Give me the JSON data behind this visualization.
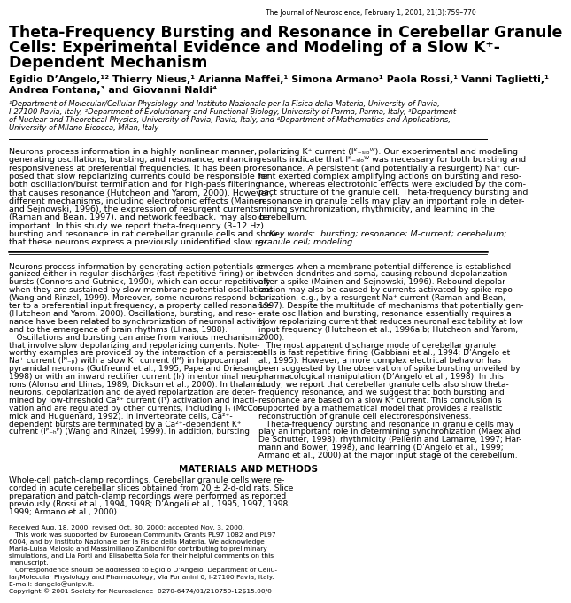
{
  "journal_header": "The Journal of Neuroscience, February 1, 2001, 21(3):759–770",
  "title_line1": "Theta-Frequency Bursting and Resonance in Cerebellar Granule",
  "title_line2": "Cells: Experimental Evidence and Modeling of a Slow K⁺-",
  "title_line3": "Dependent Mechanism",
  "authors_line1": "Egidio D’Angelo,¹² Thierry Nieus,¹ Arianna Maffei,¹ Simona Armano¹ Paola Rossi,¹ Vanni Taglietti,¹",
  "authors_line2": "Andrea Fontana,³ and Giovanni Naldi⁴",
  "aff_line1": "¹Department of Molecular/Cellular Physiology and Instituto Nazionale per la Fisica della Materia, University of Pavia,",
  "aff_line2": "I-27100 Pavia, Italy, ²Department of Evolutionary and Functional Biology, University of Parma, Parma, Italy, ³Department",
  "aff_line3": "of Nuclear and Theoretical Physics, University of Pavia, Pavia, Italy, and ⁴Department of Mathematics and Applications,",
  "aff_line4": "University of Milano Bicocca, Milan, Italy",
  "abstract_left_lines": [
    "Neurons process information in a highly nonlinear manner,",
    "generating oscillations, bursting, and resonance, enhancing",
    "responsiveness at preferential frequencies. It has been pro-",
    "posed that slow repolarizing currents could be responsible for",
    "both oscillation/burst termination and for high-pass filtering",
    "that causes resonance (Hutcheon and Yarom, 2000). However,",
    "different mechanisms, including electrotonic effects (Mainen",
    "and Sejnowski, 1996), the expression of resurgent currents",
    "(Raman and Bean, 1997), and network feedback, may also be",
    "important. In this study we report theta-frequency (3–12 Hz)",
    "bursting and resonance in rat cerebellar granule cells and show",
    "that these neurons express a previously unidentified slow re-"
  ],
  "abstract_right_lines": [
    "polarizing K⁺ current (Iᴷ₋ₛₗₒᵂ). Our experimental and modeling",
    "results indicate that Iᴷ₋ₛₗₒᵂ was necessary for both bursting and",
    "resonance. A persistent (and potentially a resurgent) Na⁺ cur-",
    "rent exerted complex amplifying actions on bursting and reso-",
    "nance, whereas electrotonic effects were excluded by the com-",
    "pact structure of the granule cell. Theta-frequency bursting and",
    "resonance in granule cells may play an important role in deter-",
    "mining synchronization, rhythmicity, and learning in the",
    "cerebellum.",
    "",
    "    Key words:  bursting; resonance; M-current; cerebellum;",
    "granule cell; modeling"
  ],
  "body_left_lines": [
    "Neurons process information by generating action potentials or-",
    "ganized either in regular discharges (fast repetitive firing) or in",
    "bursts (Connors and Gutnick, 1990), which can occur repetitively",
    "when they are sustained by slow membrane potential oscillations",
    "(Wang and Rinzel, 1999). Moreover, some neurons respond bet-",
    "ter to a preferential input frequency, a property called resonance",
    "(Hutcheon and Yarom, 2000). Oscillations, bursting, and reso-",
    "nance have been related to synchronization of neuronal activity",
    "and to the emergence of brain rhythms (Llinas, 1988).",
    "   Oscillations and bursting can arise from various mechanisms",
    "that involve slow depolarizing and repolarizing currents. Note-",
    "worthy examples are provided by the interaction of a persistent",
    "Na⁺ current (Iᴺ₋ₚ) with a slow K⁺ current (Iᴹ) in hippocampal",
    "pyramidal neurons (Gutfreund et al., 1995; Pape and Driesang,",
    "1998) or with an inward rectifier current (Iₕ) in entorhinal neu-",
    "rons (Alonso and Llinas, 1989; Dickson et al., 2000). In thalamic",
    "neurons, depolarization and delayed repolarization are deter-",
    "mined by low-threshold Ca²⁺ current (Iᵀ) activation and inacti-",
    "vation and are regulated by other currents, including Iₕ (McCor-",
    "mick and Huguenard, 1992). In invertebrate cells, Ca²⁺-",
    "dependent bursts are terminated by a Ca²⁺-dependent K⁺",
    "current (Iᴾ₋ₕᴾ) (Wang and Rinzel, 1999). In addition, bursting"
  ],
  "body_right_lines": [
    "emerges when a membrane potential difference is established",
    "between dendrites and soma, causing rebound depolarization",
    "after a spike (Mainen and Sejnowski, 1996). Rebound depolar-",
    "ization may also be caused by currents activated by spike repo-",
    "larization, e.g., by a resurgent Na⁺ current (Raman and Bean,",
    "1997). Despite the multitude of mechanisms that potentially gen-",
    "erate oscillation and bursting, resonance essentially requires a",
    "slow repolarizing current that reduces neuronal excitability at low",
    "input frequency (Hutcheon et al., 1996a,b; Hutcheon and Yarom,",
    "2000).",
    "   The most apparent discharge mode of cerebellar granule",
    "cells is fast repetitive firing (Gabbiani et al., 1994; D’Angelo et",
    "al., 1995). However, a more complex electrical behavior has",
    "been suggested by the observation of spike bursting unveiled by",
    "pharmacological manipulation (D’Angelo et al., 1998). In this",
    "study, we report that cerebellar granule cells also show theta-",
    "frequency resonance, and we suggest that both bursting and",
    "resonance are based on a slow K⁺ current. This conclusion is",
    "supported by a mathematical model that provides a realistic",
    "reconstruction of granule cell electroresponsiveness.",
    "   Theta-frequency bursting and resonance in granule cells may",
    "play an important role in determining synchronization (Maex and",
    "De Schutter, 1998), rhythmicity (Pellerin and Lamarre, 1997; Har-",
    "mann and Bower, 1998), and learning (D’Angelo et al., 1999;",
    "Armano et al., 2000) at the major input stage of the cerebellum."
  ],
  "materials_header": "MATERIALS AND METHODS",
  "materials_lines": [
    "Whole-cell patch-clamp recordings. Cerebellar granule cells were re-",
    "corded in acute cerebellar slices obtained from 20 ± 2-d-old rats. Slice",
    "preparation and patch-clamp recordings were performed as reported",
    "previously (Rossi et al., 1994, 1998; D’Angeli et al., 1995, 1997, 1998,",
    "1999; Armano et al., 2000)."
  ],
  "footnote_lines": [
    "Received Aug. 18, 2000; revised Oct. 30, 2000; accepted Nov. 3, 2000.",
    "   This work was supported by European Community Grants PL97 1082 and PL97",
    "6004, and by Instituto Nazionale per la Fisica della Materia. We acknowledge",
    "Maria-Luisa Malosio and Massimiliano Zaniboni for contributing to preliminary",
    "simulations, and Lia Forti and Elisabetta Sola for their helpful comments on this",
    "manuscript.",
    "   Correspondence should be addressed to Egidio D’Angelo, Department of Cellu-",
    "lar/Molecular Physiology and Pharmacology, Via Forlanini 6, I-27100 Pavia, Italy.",
    "E-mail: dangelo@unipv.it.",
    "Copyright © 2001 Society for Neuroscience  0270-6474/01/210759-12$15.00/0"
  ],
  "bg_color": "#ffffff",
  "text_color": "#000000"
}
